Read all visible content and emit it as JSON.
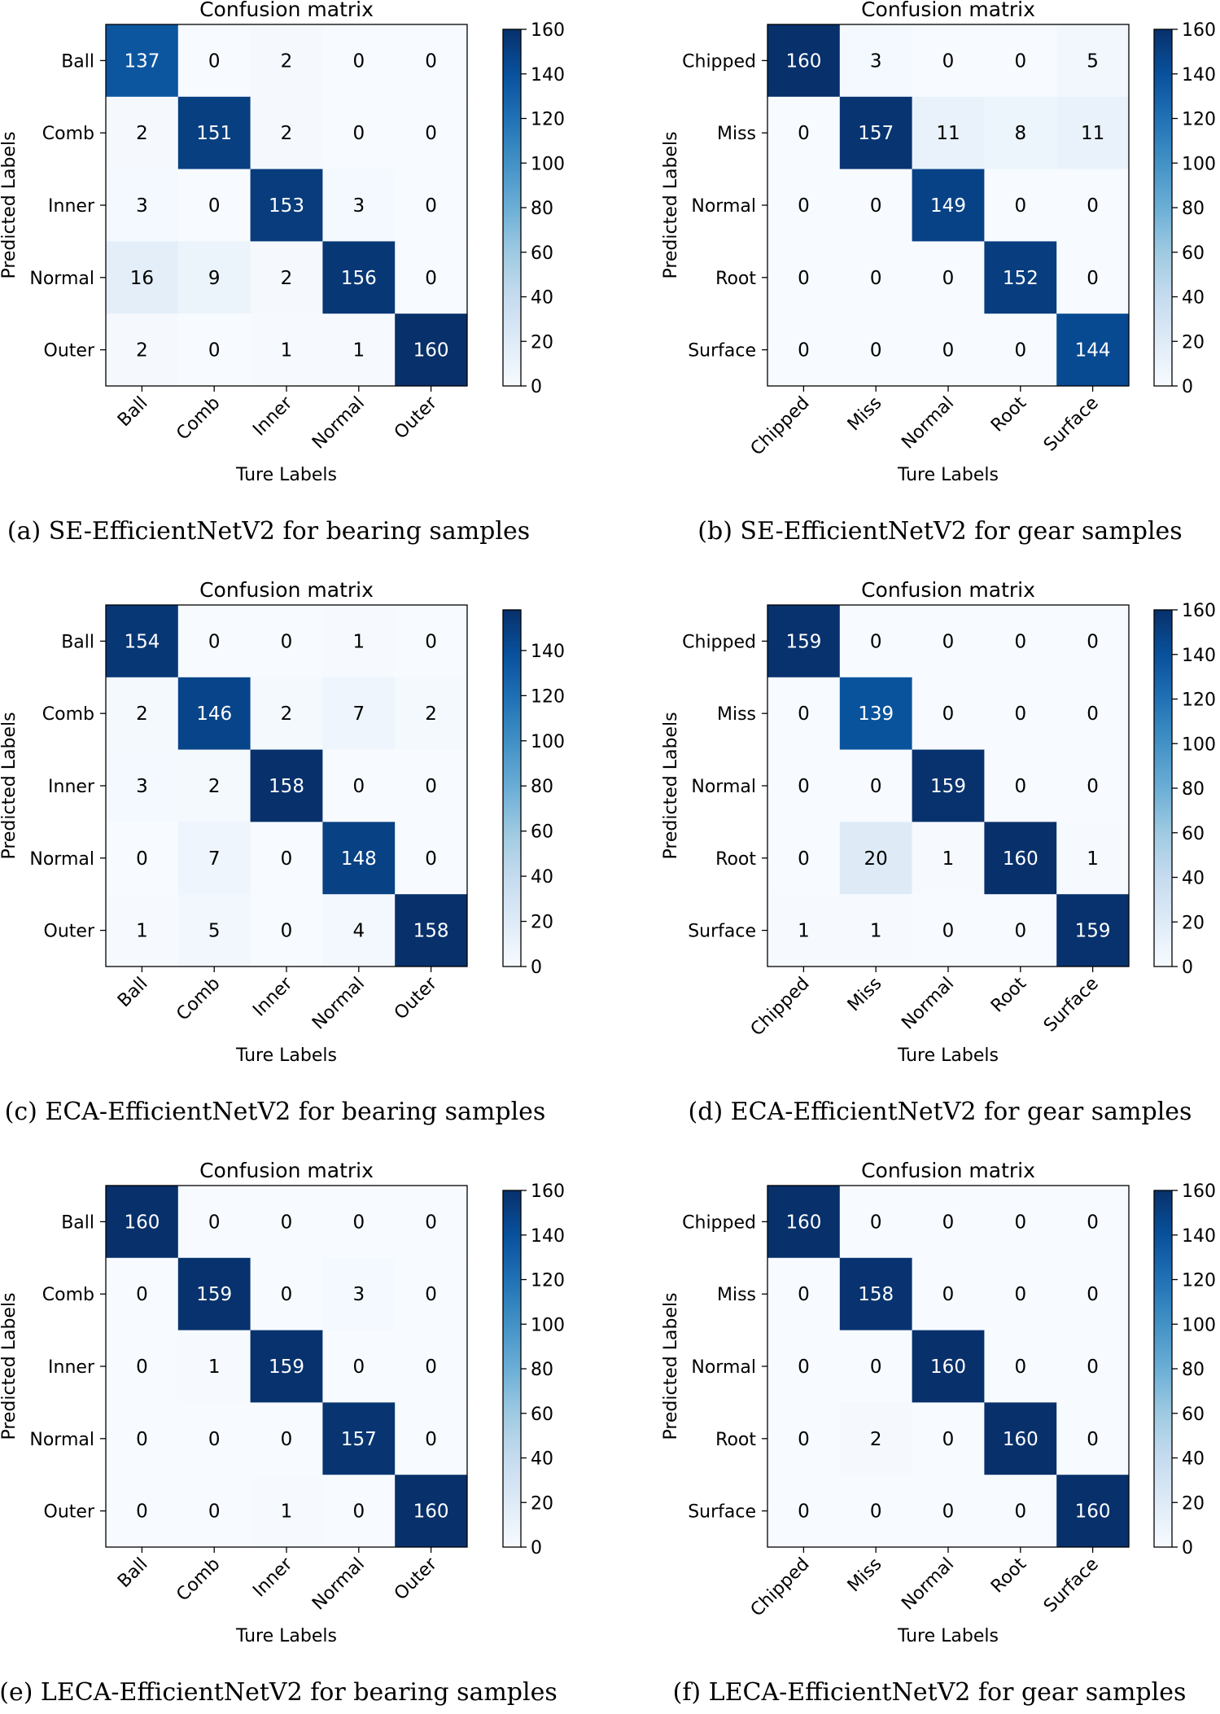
{
  "chart_data": [
    {
      "type": "heatmap",
      "title": "Confusion matrix",
      "caption": "(a) SE-EfficientNetV2 for bearing samples",
      "xlabel": "Ture Labels",
      "ylabel": "Predicted Labels",
      "x_categories": [
        "Ball",
        "Comb",
        "Inner",
        "Normal",
        "Outer"
      ],
      "y_categories": [
        "Ball",
        "Comb",
        "Inner",
        "Normal",
        "Outer"
      ],
      "values": [
        [
          137,
          0,
          2,
          0,
          0
        ],
        [
          2,
          151,
          2,
          0,
          0
        ],
        [
          3,
          0,
          153,
          3,
          0
        ],
        [
          16,
          9,
          2,
          156,
          0
        ],
        [
          2,
          0,
          1,
          1,
          160
        ]
      ],
      "colorbar": {
        "min": 0,
        "max": 160,
        "ticks": [
          0,
          20,
          40,
          60,
          80,
          100,
          120,
          140,
          160
        ]
      }
    },
    {
      "type": "heatmap",
      "title": "Confusion matrix",
      "caption": "(b) SE-EfficientNetV2 for gear samples",
      "xlabel": "Ture Labels",
      "ylabel": "Predicted Labels",
      "x_categories": [
        "Chipped",
        "Miss",
        "Normal",
        "Root",
        "Surface"
      ],
      "y_categories": [
        "Chipped",
        "Miss",
        "Normal",
        "Root",
        "Surface"
      ],
      "values": [
        [
          160,
          3,
          0,
          0,
          5
        ],
        [
          0,
          157,
          11,
          8,
          11
        ],
        [
          0,
          0,
          149,
          0,
          0
        ],
        [
          0,
          0,
          0,
          152,
          0
        ],
        [
          0,
          0,
          0,
          0,
          144
        ]
      ],
      "colorbar": {
        "min": 0,
        "max": 160,
        "ticks": [
          0,
          20,
          40,
          60,
          80,
          100,
          120,
          140,
          160
        ]
      }
    },
    {
      "type": "heatmap",
      "title": "Confusion matrix",
      "caption": "(c) ECA-EfficientNetV2 for bearing samples",
      "xlabel": "Ture Labels",
      "ylabel": "Predicted Labels",
      "x_categories": [
        "Ball",
        "Comb",
        "Inner",
        "Normal",
        "Outer"
      ],
      "y_categories": [
        "Ball",
        "Comb",
        "Inner",
        "Normal",
        "Outer"
      ],
      "values": [
        [
          154,
          0,
          0,
          1,
          0
        ],
        [
          2,
          146,
          2,
          7,
          2
        ],
        [
          3,
          2,
          158,
          0,
          0
        ],
        [
          0,
          7,
          0,
          148,
          0
        ],
        [
          1,
          5,
          0,
          4,
          158
        ]
      ],
      "colorbar": {
        "min": 0,
        "max": 158,
        "ticks": [
          0,
          20,
          40,
          60,
          80,
          100,
          120,
          140
        ]
      }
    },
    {
      "type": "heatmap",
      "title": "Confusion matrix",
      "caption": "(d) ECA-EfficientNetV2 for gear samples",
      "xlabel": "Ture Labels",
      "ylabel": "Predicted Labels",
      "x_categories": [
        "Chipped",
        "Miss",
        "Normal",
        "Root",
        "Surface"
      ],
      "y_categories": [
        "Chipped",
        "Miss",
        "Normal",
        "Root",
        "Surface"
      ],
      "values": [
        [
          159,
          0,
          0,
          0,
          0
        ],
        [
          0,
          139,
          0,
          0,
          0
        ],
        [
          0,
          0,
          159,
          0,
          0
        ],
        [
          0,
          20,
          1,
          160,
          1
        ],
        [
          1,
          1,
          0,
          0,
          159
        ]
      ],
      "colorbar": {
        "min": 0,
        "max": 160,
        "ticks": [
          0,
          20,
          40,
          60,
          80,
          100,
          120,
          140,
          160
        ]
      }
    },
    {
      "type": "heatmap",
      "title": "Confusion matrix",
      "caption": "(e) LECA-EfficientNetV2 for bearing samples",
      "xlabel": "Ture Labels",
      "ylabel": "Predicted Labels",
      "x_categories": [
        "Ball",
        "Comb",
        "Inner",
        "Normal",
        "Outer"
      ],
      "y_categories": [
        "Ball",
        "Comb",
        "Inner",
        "Normal",
        "Outer"
      ],
      "values": [
        [
          160,
          0,
          0,
          0,
          0
        ],
        [
          0,
          159,
          0,
          3,
          0
        ],
        [
          0,
          1,
          159,
          0,
          0
        ],
        [
          0,
          0,
          0,
          157,
          0
        ],
        [
          0,
          0,
          1,
          0,
          160
        ]
      ],
      "colorbar": {
        "min": 0,
        "max": 160,
        "ticks": [
          0,
          20,
          40,
          60,
          80,
          100,
          120,
          140,
          160
        ]
      }
    },
    {
      "type": "heatmap",
      "title": "Confusion matrix",
      "caption": "(f) LECA-EfficientNetV2 for gear samples",
      "xlabel": "Ture Labels",
      "ylabel": "Predicted Labels",
      "x_categories": [
        "Chipped",
        "Miss",
        "Normal",
        "Root",
        "Surface"
      ],
      "y_categories": [
        "Chipped",
        "Miss",
        "Normal",
        "Root",
        "Surface"
      ],
      "values": [
        [
          160,
          0,
          0,
          0,
          0
        ],
        [
          0,
          158,
          0,
          0,
          0
        ],
        [
          0,
          0,
          160,
          0,
          0
        ],
        [
          0,
          2,
          0,
          160,
          0
        ],
        [
          0,
          0,
          0,
          0,
          160
        ]
      ],
      "colorbar": {
        "min": 0,
        "max": 160,
        "ticks": [
          0,
          20,
          40,
          60,
          80,
          100,
          120,
          140,
          160
        ]
      }
    }
  ]
}
